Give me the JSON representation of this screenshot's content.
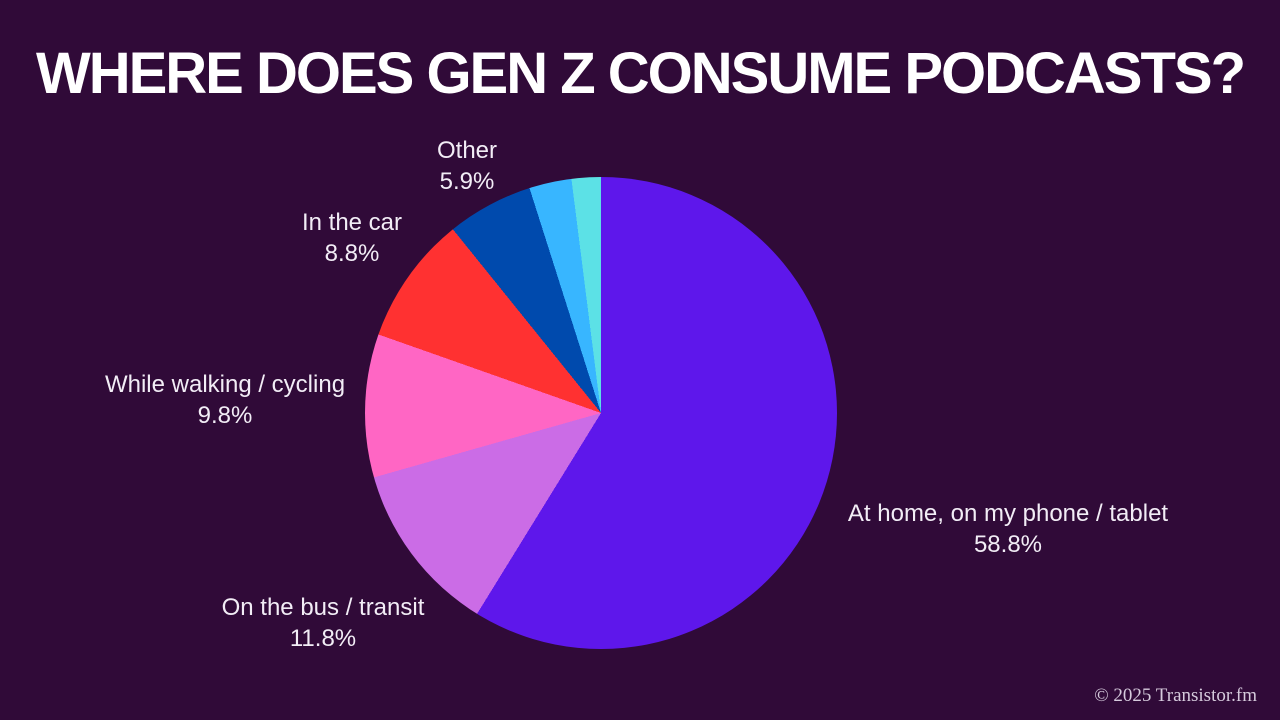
{
  "title": "WHERE DOES GEN Z CONSUME PODCASTS?",
  "footer": {
    "text": "© 2025 Transistor.fm"
  },
  "colors": {
    "background": "#300a38",
    "title_text": "#ffffff",
    "label_text": "#f2edf6",
    "footer_text": "#d6cbdd"
  },
  "chart_data": {
    "type": "pie",
    "title": "WHERE DOES GEN Z CONSUME PODCASTS?",
    "start_angle_deg": 0,
    "direction": "clockwise",
    "legend_position": "none",
    "segments": [
      {
        "label": "At home, on my phone / tablet",
        "value": 58.8,
        "pct_label": "58.8%",
        "color": "#5e17eb"
      },
      {
        "label": "On the bus / transit",
        "value": 11.8,
        "pct_label": "11.8%",
        "color": "#cb6ce6"
      },
      {
        "label": "While walking / cycling",
        "value": 9.8,
        "pct_label": "9.8%",
        "color": "#ff66c4"
      },
      {
        "label": "In the car",
        "value": 8.8,
        "pct_label": "8.8%",
        "color": "#ff3131"
      },
      {
        "label": "Other",
        "value": 5.9,
        "pct_label": "5.9%",
        "color": "#004aad"
      },
      {
        "label": "",
        "value": 2.9,
        "pct_label": "",
        "color": "#38b6ff"
      },
      {
        "label": "",
        "value": 2.0,
        "pct_label": "",
        "color": "#5ce1e6"
      }
    ]
  }
}
